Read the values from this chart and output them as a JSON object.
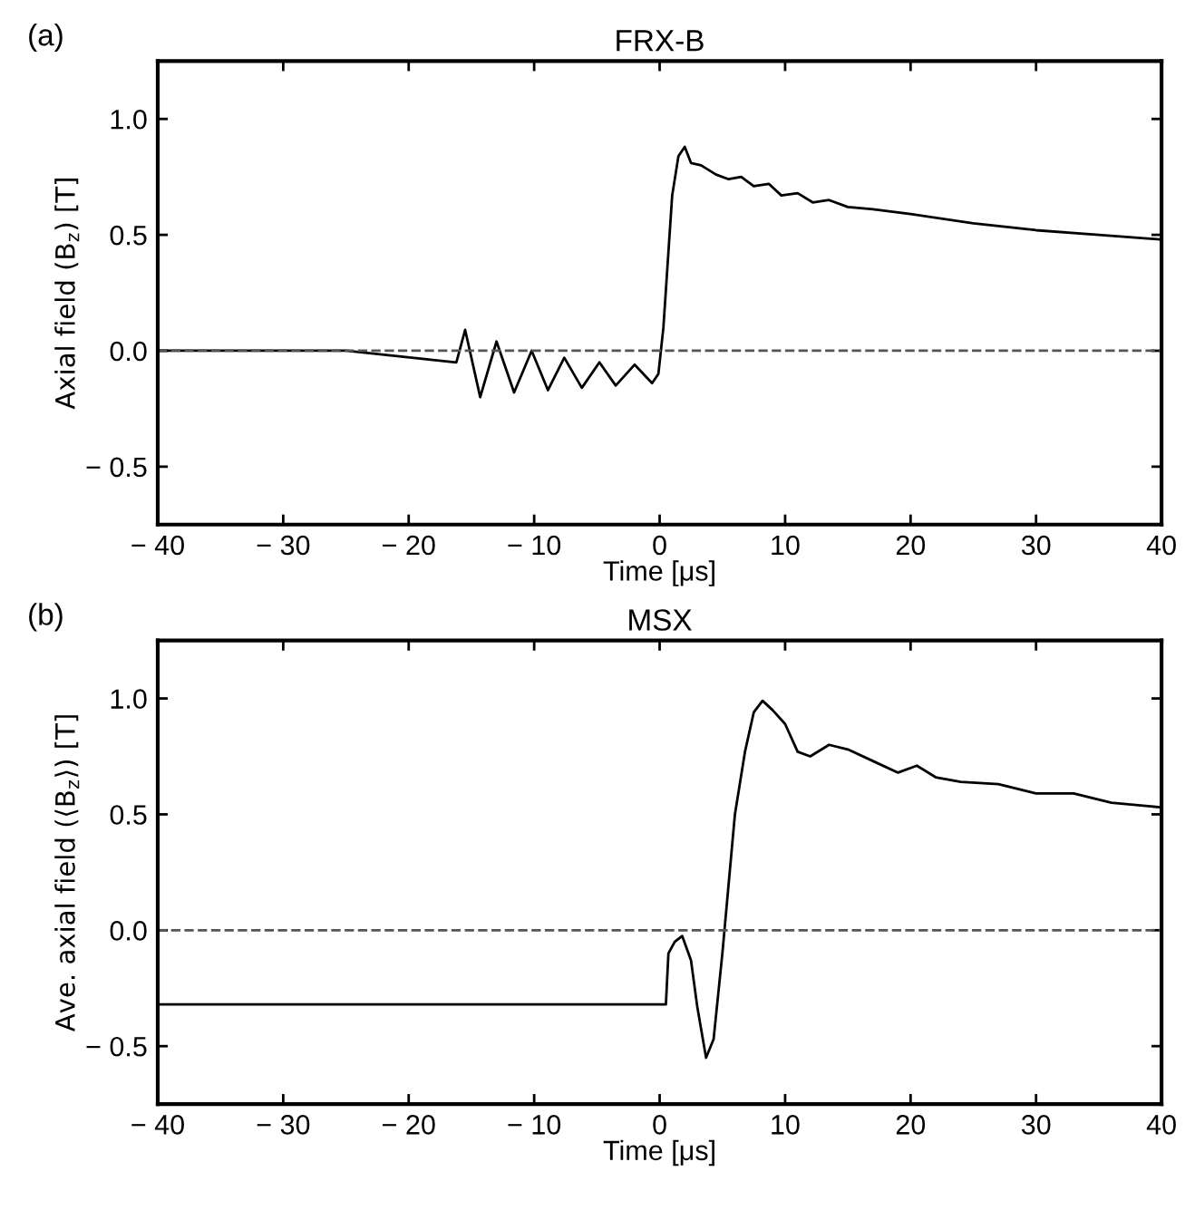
{
  "chart_data": [
    {
      "type": "line",
      "title": "FRX-B",
      "xlabel": "Time [μs]",
      "ylabel": "Axial field (B$_{z}$) [T]",
      "annotations": [
        "(a)"
      ],
      "series": [
        {
          "color": "#000000",
          "x": [
            -40,
            -25,
            -16.2,
            -15.5,
            -14.3,
            -13,
            -11.6,
            -10.2,
            -8.9,
            -7.6,
            -6.2,
            -4.8,
            -3.5,
            -2,
            -0.6,
            -0.1,
            0.3,
            1.0,
            1.5,
            2,
            2.5,
            3.3,
            4.5,
            5.5,
            6.5,
            7.5,
            8.7,
            9.7,
            11,
            12.2,
            13.5,
            15,
            17,
            20,
            25,
            30,
            35,
            40
          ],
          "values": [
            0,
            0,
            -0.05,
            0.09,
            -0.2,
            0.04,
            -0.18,
            0.0,
            -0.17,
            -0.03,
            -0.16,
            -0.05,
            -0.15,
            -0.06,
            -0.14,
            -0.1,
            0.1,
            0.67,
            0.84,
            0.88,
            0.81,
            0.8,
            0.76,
            0.74,
            0.75,
            0.71,
            0.72,
            0.67,
            0.68,
            0.64,
            0.65,
            0.62,
            0.61,
            0.59,
            0.55,
            0.52,
            0.5,
            0.48
          ]
        }
      ],
      "xlim": [
        -40,
        40
      ],
      "ylim": [
        -0.75,
        1.25
      ],
      "xticks": [
        {
          "value": -40,
          "label": "− 40"
        },
        {
          "value": -30,
          "label": "− 30"
        },
        {
          "value": -20,
          "label": "− 20"
        },
        {
          "value": -10,
          "label": "− 10"
        },
        0,
        10,
        20,
        30,
        40
      ],
      "yticks": [
        {
          "value": -0.5,
          "label": "− 0.5"
        },
        {
          "value": 0,
          "label": "0.0"
        },
        {
          "value": 0.5,
          "label": "0.5"
        },
        {
          "value": 1,
          "label": "1.0"
        }
      ],
      "ref_lines": [
        {
          "axis": "y",
          "value": 0,
          "color": "#555555",
          "line_style": "dashed"
        }
      ],
      "grid": false,
      "legend": false,
      "marker": "none",
      "line_style": "solid"
    },
    {
      "type": "line",
      "title": "MSX",
      "xlabel": "Time [μs]",
      "ylabel": "Ave. axial field (⟨B$_{z}$⟩) [T]",
      "annotations": [
        "(b)"
      ],
      "series": [
        {
          "color": "#000000",
          "x": [
            -40,
            -10,
            0.5,
            0.7,
            1.2,
            1.8,
            2.5,
            3,
            3.7,
            4.3,
            5,
            5.5,
            6,
            6.8,
            7.5,
            8.2,
            9,
            10,
            11,
            12,
            13.5,
            15,
            17,
            19,
            20.5,
            22,
            24,
            27,
            30,
            33,
            36,
            40
          ],
          "values": [
            -0.32,
            -0.32,
            -0.32,
            -0.1,
            -0.05,
            -0.025,
            -0.13,
            -0.33,
            -0.55,
            -0.47,
            -0.1,
            0.2,
            0.5,
            0.77,
            0.94,
            0.99,
            0.95,
            0.89,
            0.77,
            0.75,
            0.8,
            0.78,
            0.73,
            0.68,
            0.71,
            0.66,
            0.64,
            0.63,
            0.59,
            0.59,
            0.55,
            0.53
          ]
        }
      ],
      "xlim": [
        -40,
        40
      ],
      "ylim": [
        -0.75,
        1.25
      ],
      "xticks": [
        {
          "value": -40,
          "label": "− 40"
        },
        {
          "value": -30,
          "label": "− 30"
        },
        {
          "value": -20,
          "label": "− 20"
        },
        {
          "value": -10,
          "label": "− 10"
        },
        0,
        10,
        20,
        30,
        40
      ],
      "yticks": [
        {
          "value": -0.5,
          "label": "− 0.5"
        },
        {
          "value": 0,
          "label": "0.0"
        },
        {
          "value": 0.5,
          "label": "0.5"
        },
        {
          "value": 1,
          "label": "1.0"
        }
      ],
      "ref_lines": [
        {
          "axis": "y",
          "value": 0,
          "color": "#555555",
          "line_style": "dashed"
        }
      ],
      "grid": false,
      "legend": false,
      "marker": "none",
      "line_style": "solid"
    }
  ]
}
